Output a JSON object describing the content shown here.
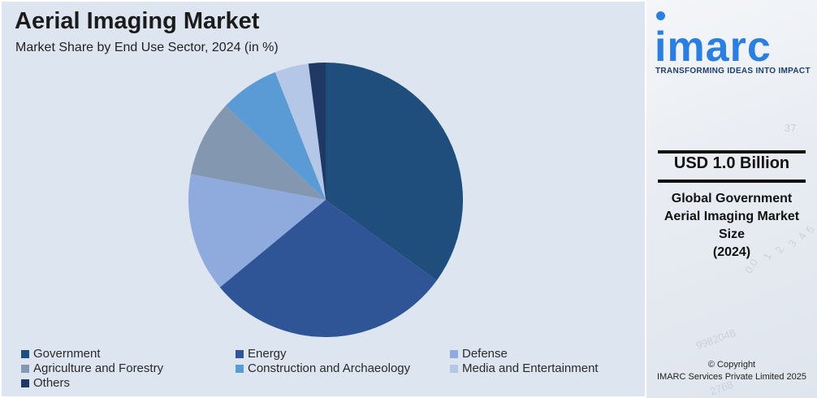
{
  "header": {
    "title": "Aerial Imaging Market",
    "subtitle": "Market Share by End Use Sector, 2024 (in %)"
  },
  "chart_data": {
    "type": "pie",
    "title": "Aerial Imaging Market",
    "subtitle": "Market Share by End Use Sector, 2024 (in %)",
    "categories": [
      "Government",
      "Energy",
      "Defense",
      "Agriculture and Forestry",
      "Construction and Archaeology",
      "Media and Entertainment",
      "Others"
    ],
    "values": [
      35,
      29,
      14,
      9,
      7,
      4,
      2
    ],
    "colors": [
      "#1f4e7c",
      "#2f5597",
      "#8faadc",
      "#8497b0",
      "#5b9bd5",
      "#b4c7e7",
      "#203864"
    ],
    "legend_position": "bottom"
  },
  "sidebar": {
    "logo_text": "imarc",
    "tagline": "TRANSFORMING IDEAS INTO IMPACT",
    "market_value": "USD 1.0 Billion",
    "market_desc_lines": [
      "Global Government",
      "Aerial Imaging Market",
      "Size",
      "(2024)"
    ],
    "copyright_line1": "© Copyright",
    "copyright_line2": "IMARC Services Private Limited 2025",
    "background_numbers": [
      "0.0",
      "1",
      "2",
      "3",
      "4",
      "5",
      "9982048",
      "2768",
      "37"
    ]
  }
}
